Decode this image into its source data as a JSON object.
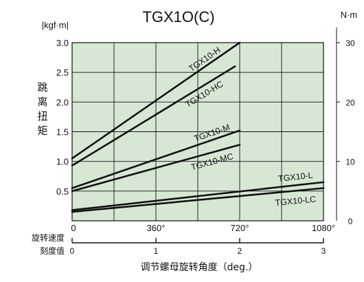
{
  "chart_data": {
    "type": "line",
    "title": "TGX1O(C)",
    "ylabel_left": "跳离扭矩",
    "ylabel_right": "",
    "left_unit": "|kgf·m|",
    "right_unit": "N·m",
    "xlabel": "调节螺母旋转角度（deg.）",
    "x_ticks": [
      "0",
      "360°",
      "720°",
      "1080°"
    ],
    "x_range": [
      0,
      1080
    ],
    "y_range": [
      0,
      3.0
    ],
    "y_ticks_left": [
      "0",
      "0.5",
      "1.0",
      "1.5",
      "2.0",
      "2.5",
      "3.0"
    ],
    "y_ticks_right": [
      "0",
      "10",
      "20",
      "30"
    ],
    "secondary_axis": {
      "label_lines": [
        "旋转速度",
        "刻度值"
      ],
      "ticks": [
        "0",
        "1",
        "2",
        "3"
      ]
    },
    "grid": true,
    "series": [
      {
        "name": "TGX10-H",
        "x": [
          0,
          720
        ],
        "y": [
          1.05,
          3.0
        ]
      },
      {
        "name": "TGX10-HC",
        "x": [
          0,
          700
        ],
        "y": [
          0.93,
          2.6
        ]
      },
      {
        "name": "TGX10-M",
        "x": [
          0,
          720
        ],
        "y": [
          0.55,
          1.52
        ]
      },
      {
        "name": "TGX10-MC",
        "x": [
          0,
          720
        ],
        "y": [
          0.5,
          1.28
        ]
      },
      {
        "name": "TGX10-L",
        "x": [
          0,
          1080
        ],
        "y": [
          0.18,
          0.65
        ]
      },
      {
        "name": "TGX10-LC",
        "x": [
          0,
          1080
        ],
        "y": [
          0.15,
          0.55
        ]
      }
    ],
    "colors": {
      "plot_bg": "#d6e8d4",
      "line": "#111111",
      "grid": "#111111"
    }
  }
}
